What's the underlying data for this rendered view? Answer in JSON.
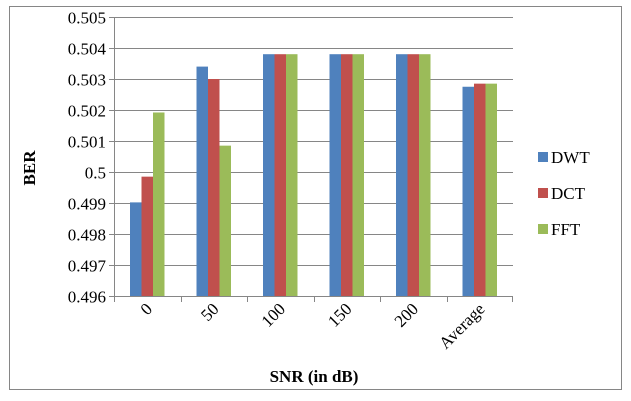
{
  "chart_data": {
    "type": "bar",
    "title": "",
    "xlabel": "SNR (in dB)",
    "ylabel": "BER",
    "ylim": [
      0.496,
      0.505
    ],
    "yticks": [
      "0.496",
      "0.497",
      "0.498",
      "0.499",
      "0.5",
      "0.501",
      "0.502",
      "0.503",
      "0.504",
      "0.505"
    ],
    "categories": [
      "0",
      "50",
      "100",
      "150",
      "200",
      "Average"
    ],
    "series": [
      {
        "name": "DWT",
        "color": "#4f81bd",
        "values": [
          0.49902,
          0.5034,
          0.5038,
          0.5038,
          0.5038,
          0.50275
        ]
      },
      {
        "name": "DCT",
        "color": "#c0504d",
        "values": [
          0.49985,
          0.503,
          0.5038,
          0.5038,
          0.5038,
          0.50285
        ]
      },
      {
        "name": "FFT",
        "color": "#9bbb59",
        "values": [
          0.50192,
          0.50085,
          0.5038,
          0.5038,
          0.5038,
          0.50285
        ]
      }
    ],
    "grid": true,
    "legend": "right"
  }
}
